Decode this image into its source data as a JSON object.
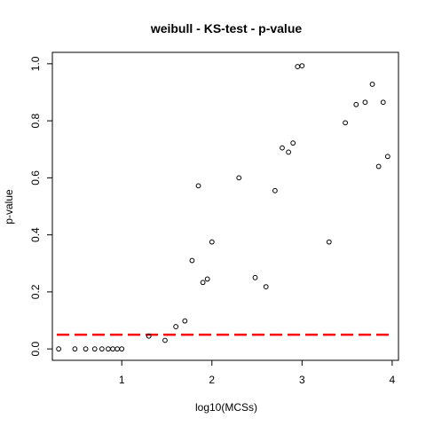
{
  "chart_data": {
    "type": "scatter",
    "title": "weibull - KS-test - p-value",
    "xlabel": "log10(MCSs)",
    "ylabel": "p-value",
    "xlim": [
      0.23,
      4.07
    ],
    "ylim": [
      -0.04,
      1.04
    ],
    "x_ticks": [
      1,
      2,
      3,
      4
    ],
    "x_tick_labels": [
      "1",
      "2",
      "3",
      "4"
    ],
    "y_ticks": [
      0.0,
      0.2,
      0.4,
      0.6,
      0.8,
      1.0
    ],
    "y_tick_labels": [
      "0.0",
      "0.2",
      "0.4",
      "0.6",
      "0.8",
      "1.0"
    ],
    "grid": false,
    "point_style": "open-circle",
    "point_color": "#000000",
    "reference_line": {
      "y": 0.05,
      "style": "dashed",
      "color": "#ff0000"
    },
    "points": [
      {
        "x": 0.3,
        "y": 0.0
      },
      {
        "x": 0.48,
        "y": 0.0
      },
      {
        "x": 0.6,
        "y": 0.0
      },
      {
        "x": 0.7,
        "y": 0.0
      },
      {
        "x": 0.78,
        "y": 0.0
      },
      {
        "x": 0.85,
        "y": 0.0
      },
      {
        "x": 0.9,
        "y": 0.0
      },
      {
        "x": 0.95,
        "y": 0.0
      },
      {
        "x": 1.0,
        "y": 0.0
      },
      {
        "x": 1.3,
        "y": 0.045
      },
      {
        "x": 1.48,
        "y": 0.03
      },
      {
        "x": 1.6,
        "y": 0.078
      },
      {
        "x": 1.7,
        "y": 0.098
      },
      {
        "x": 1.78,
        "y": 0.31
      },
      {
        "x": 1.85,
        "y": 0.572
      },
      {
        "x": 1.9,
        "y": 0.233
      },
      {
        "x": 1.95,
        "y": 0.245
      },
      {
        "x": 2.0,
        "y": 0.375
      },
      {
        "x": 2.3,
        "y": 0.6
      },
      {
        "x": 2.48,
        "y": 0.25
      },
      {
        "x": 2.6,
        "y": 0.218
      },
      {
        "x": 2.7,
        "y": 0.555
      },
      {
        "x": 2.78,
        "y": 0.705
      },
      {
        "x": 2.85,
        "y": 0.69
      },
      {
        "x": 2.9,
        "y": 0.722
      },
      {
        "x": 2.95,
        "y": 0.99
      },
      {
        "x": 3.0,
        "y": 0.993
      },
      {
        "x": 3.3,
        "y": 0.375
      },
      {
        "x": 3.48,
        "y": 0.793
      },
      {
        "x": 3.6,
        "y": 0.857
      },
      {
        "x": 3.7,
        "y": 0.865
      },
      {
        "x": 3.78,
        "y": 0.928
      },
      {
        "x": 3.85,
        "y": 0.64
      },
      {
        "x": 3.9,
        "y": 0.865
      },
      {
        "x": 3.95,
        "y": 0.675
      }
    ]
  }
}
